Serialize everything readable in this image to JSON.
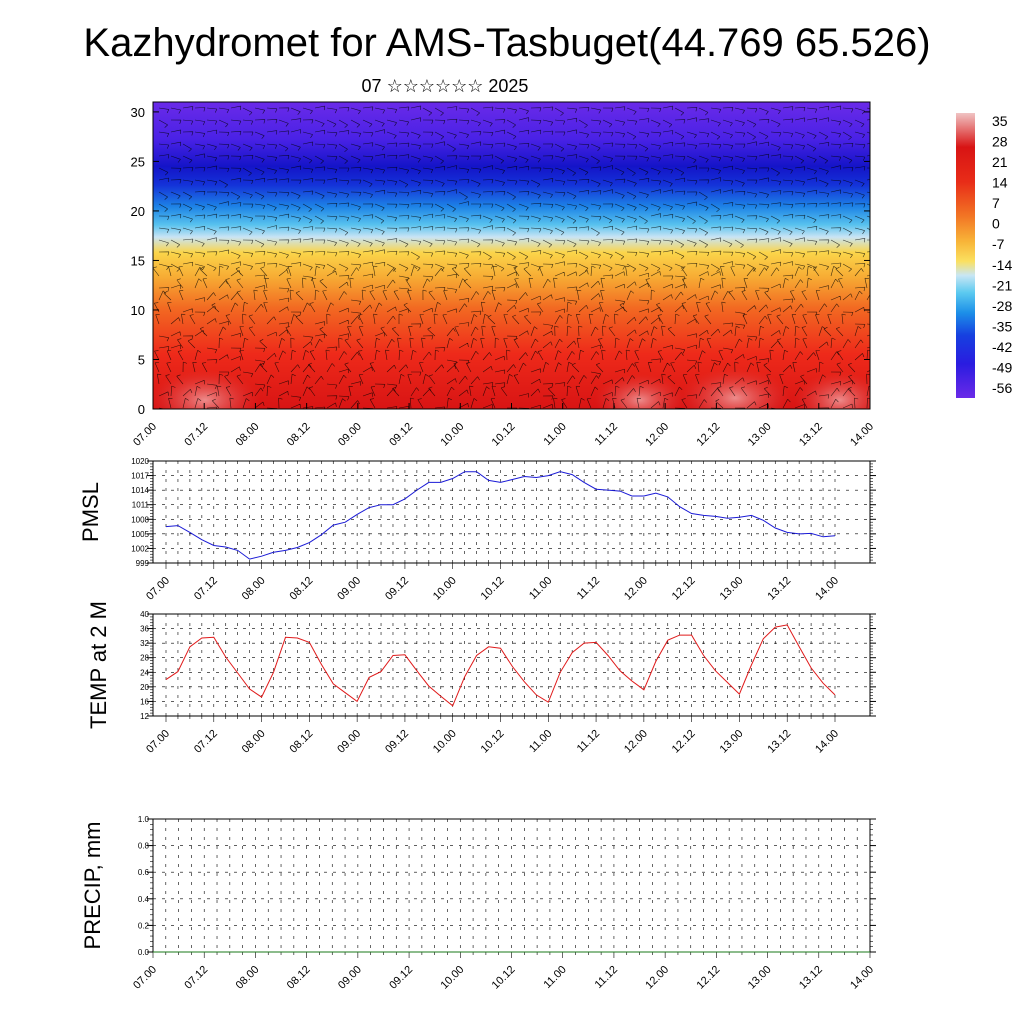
{
  "title": "Kazhydromet for AMS-Tasbuget(44.769 65.526)",
  "subtitle": "07 ☆☆☆☆☆☆ 2025",
  "time_labels": [
    "07.00",
    "07.12",
    "08.00",
    "08.12",
    "09.00",
    "09.12",
    "10.00",
    "10.12",
    "11.00",
    "11.12",
    "12.00",
    "12.12",
    "13.00",
    "13.12",
    "14.00"
  ],
  "colorbar": {
    "labels": [
      "35",
      "28",
      "21",
      "14",
      "7",
      "0",
      "-7",
      "-14",
      "-21",
      "-28",
      "-35",
      "-42",
      "-49",
      "-56"
    ]
  },
  "chart_data": [
    {
      "type": "heatmap",
      "title": "",
      "ylabel": "",
      "yticks": [
        0,
        5,
        10,
        15,
        20,
        25,
        30
      ],
      "ylim": [
        0,
        31
      ],
      "x_range": [
        "07.00",
        "14.00"
      ],
      "color_scale": [
        -56,
        35
      ],
      "levels_temp_c": [
        {
          "height": 0,
          "value": 26
        },
        {
          "height": 5,
          "value": 18
        },
        {
          "height": 10,
          "value": 2
        },
        {
          "height": 13,
          "value": -5
        },
        {
          "height": 16,
          "value": -14
        },
        {
          "height": 18.5,
          "value": -30
        },
        {
          "height": 21,
          "value": -45
        },
        {
          "height": 24,
          "value": -58
        },
        {
          "height": 27,
          "value": -54
        },
        {
          "height": 31,
          "value": -52
        }
      ],
      "overlay": "wind barbs"
    },
    {
      "type": "line",
      "ylabel": "PMSL",
      "ylim": [
        999,
        1020
      ],
      "yticks": [
        999,
        1002,
        1005,
        1008,
        1011,
        1014,
        1017,
        1020
      ],
      "color": "#1a1ad6",
      "series": [
        {
          "x_start": "07.00",
          "step_hours": 3,
          "values": [
            1006.5,
            1006.7,
            1005.3,
            1003.8,
            1002.6,
            1002.3,
            1001.6,
            999.8,
            1000.4,
            1001.2,
            1001.6,
            1002.2,
            1003.2,
            1004.8,
            1006.8,
            1007.4,
            1009.0,
            1010.4,
            1011.0,
            1011.0,
            1012.2,
            1014.0,
            1015.6,
            1015.6,
            1016.4,
            1017.8,
            1017.8,
            1016.0,
            1015.6,
            1016.2,
            1016.8,
            1016.6,
            1017.0,
            1017.8,
            1017.2,
            1015.6,
            1014.2,
            1014.0,
            1013.8,
            1012.8,
            1012.8,
            1013.4,
            1012.6,
            1010.6,
            1009.2,
            1008.8,
            1008.6,
            1008.2,
            1008.4,
            1008.8,
            1007.8,
            1006.2,
            1005.3,
            1005.0,
            1005.1,
            1004.4,
            1004.6
          ]
        }
      ]
    },
    {
      "type": "line",
      "ylabel": "TEMP at 2 M",
      "ylim": [
        12,
        40
      ],
      "yticks": [
        12,
        16,
        20,
        24,
        28,
        32,
        36,
        40
      ],
      "color": "#e01a1a",
      "series": [
        {
          "x_start": "07.00",
          "step_hours": 3,
          "values": [
            22.0,
            24.2,
            31.0,
            33.4,
            33.6,
            28.2,
            23.8,
            19.4,
            17.2,
            24.0,
            33.6,
            33.4,
            32.2,
            26.2,
            20.8,
            18.4,
            16.0,
            22.6,
            24.2,
            28.6,
            28.8,
            24.4,
            20.2,
            17.4,
            14.8,
            22.8,
            28.6,
            31.0,
            30.6,
            25.6,
            21.4,
            17.8,
            15.8,
            24.0,
            29.4,
            32.0,
            32.2,
            28.6,
            24.4,
            21.6,
            19.2,
            27.0,
            32.8,
            34.2,
            34.2,
            28.6,
            24.4,
            21.2,
            18.0,
            26.0,
            33.2,
            36.4,
            37.0,
            31.0,
            25.2,
            21.0,
            17.8
          ]
        }
      ]
    },
    {
      "type": "line",
      "ylabel": "PRECIP, mm",
      "ylim": [
        0,
        1.0
      ],
      "yticks": [
        "0.0",
        "0.2",
        "0.4",
        "0.6",
        "0.8",
        "1.0"
      ],
      "color": "#1a7a1a",
      "series": [
        {
          "x_start": "07.00",
          "step_hours": 3,
          "values": [
            0,
            0,
            0,
            0,
            0,
            0,
            0,
            0,
            0,
            0,
            0,
            0,
            0,
            0,
            0,
            0,
            0,
            0,
            0,
            0,
            0,
            0,
            0,
            0,
            0,
            0,
            0,
            0,
            0,
            0,
            0,
            0,
            0,
            0,
            0,
            0,
            0,
            0,
            0,
            0,
            0,
            0,
            0,
            0,
            0,
            0,
            0,
            0,
            0,
            0,
            0,
            0,
            0,
            0,
            0,
            0,
            0
          ]
        }
      ]
    }
  ]
}
